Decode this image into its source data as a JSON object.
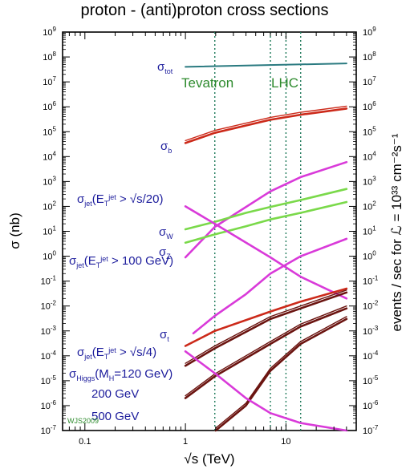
{
  "chart_data": {
    "type": "line",
    "title": "proton - (anti)proton cross sections",
    "xlabel": "√s (TeV)",
    "ylabel": "σ (nb)",
    "ylabel_right": "events / sec for ℒ = 10³³ cm⁻²s⁻¹",
    "x_scale": "log",
    "y_scale": "log",
    "xlim": [
      0.06,
      50
    ],
    "ylim": [
      1e-07,
      1000000000.0
    ],
    "y_right_lim": [
      1e-07,
      1000000000.0
    ],
    "x_ticks": [
      {
        "v": 0.1,
        "label": "0.1"
      },
      {
        "v": 1,
        "label": "1"
      },
      {
        "v": 10,
        "label": "10"
      }
    ],
    "y_ticks": [
      {
        "v": 1e-07,
        "base": "10",
        "exp": "-7"
      },
      {
        "v": 1e-06,
        "base": "10",
        "exp": "-6"
      },
      {
        "v": 1e-05,
        "base": "10",
        "exp": "-5"
      },
      {
        "v": 0.0001,
        "base": "10",
        "exp": "-4"
      },
      {
        "v": 0.001,
        "base": "10",
        "exp": "-3"
      },
      {
        "v": 0.01,
        "base": "10",
        "exp": "-2"
      },
      {
        "v": 0.1,
        "base": "10",
        "exp": "-1"
      },
      {
        "v": 1,
        "base": "10",
        "exp": "0"
      },
      {
        "v": 10.0,
        "base": "10",
        "exp": "1"
      },
      {
        "v": 100.0,
        "base": "10",
        "exp": "2"
      },
      {
        "v": 1000.0,
        "base": "10",
        "exp": "3"
      },
      {
        "v": 10000.0,
        "base": "10",
        "exp": "4"
      },
      {
        "v": 100000.0,
        "base": "10",
        "exp": "5"
      },
      {
        "v": 1000000.0,
        "base": "10",
        "exp": "6"
      },
      {
        "v": 10000000.0,
        "base": "10",
        "exp": "7"
      },
      {
        "v": 100000000.0,
        "base": "10",
        "exp": "8"
      },
      {
        "v": 1000000000.0,
        "base": "10",
        "exp": "9"
      }
    ],
    "grid": false,
    "energy_markers": [
      {
        "label": "Tevatron",
        "x": [
          1.96
        ]
      },
      {
        "label": "LHC",
        "x": [
          7,
          10,
          14
        ]
      }
    ],
    "credit": "WJS2009",
    "colors": {
      "tot": "#2a7a80",
      "b": "#cc2a1a",
      "jet": "#d93ad9",
      "w": "#7ad94a",
      "z": "#7ad94a",
      "t": "#cc2a1a",
      "higgs": "#6b1410",
      "marker": "#1f7a5a",
      "label": "#1c1c9c",
      "region": "#2e8b2e"
    },
    "series": [
      {
        "id": "tot",
        "x": [
          1.0,
          40
        ],
        "y": [
          40000000.0,
          55000000.0
        ],
        "dual": false
      },
      {
        "id": "b",
        "x": [
          1.0,
          1.96,
          7,
          14,
          40
        ],
        "y": [
          35000.0,
          90000.0,
          300000.0,
          480000.0,
          850000.0
        ],
        "dual": true
      },
      {
        "id": "jet_s20",
        "x": [
          1.0,
          1.96,
          7,
          14,
          40
        ],
        "y": [
          0.9,
          15,
          400,
          1500,
          6000
        ],
        "dual": false
      },
      {
        "id": "w",
        "x": [
          1.0,
          1.96,
          4,
          7,
          14,
          40
        ],
        "y": [
          12,
          24,
          55,
          95,
          180,
          500
        ],
        "dual": false
      },
      {
        "id": "z",
        "x": [
          1.0,
          1.96,
          4,
          7,
          14,
          40
        ],
        "y": [
          3.5,
          7.5,
          16,
          30,
          55,
          150
        ],
        "dual": false
      },
      {
        "id": "jet_100",
        "x": [
          1.0,
          1.96,
          7,
          14,
          40
        ],
        "y": [
          100,
          20,
          0.9,
          0.15,
          0.02
        ],
        "dual": false
      },
      {
        "id": "jet_s4",
        "x": [
          1.2,
          1.96,
          4,
          7,
          14,
          40
        ],
        "y": [
          0.0008,
          0.004,
          0.03,
          0.2,
          1.0,
          5.0
        ],
        "dual": false
      },
      {
        "id": "t",
        "x": [
          1.0,
          1.96,
          7,
          14,
          40
        ],
        "y": [
          0.00025,
          0.001,
          0.006,
          0.015,
          0.05
        ],
        "dual": false
      },
      {
        "id": "higgs",
        "x": [
          1.0,
          1.96,
          7,
          14,
          40
        ],
        "y": [
          4e-05,
          0.0002,
          0.003,
          0.008,
          0.035
        ],
        "dual": true
      },
      {
        "id": "higgs200",
        "x": [
          1.0,
          1.96,
          7,
          14,
          40
        ],
        "y": [
          2e-06,
          1.5e-05,
          0.0003,
          0.0015,
          0.008
        ],
        "dual": true
      },
      {
        "id": "higgs500",
        "x": [
          2.0,
          4,
          7,
          14,
          40
        ],
        "y": [
          1e-07,
          1e-06,
          2.5e-05,
          0.0003,
          0.003
        ],
        "dual": true
      },
      {
        "id": "jet_low",
        "x": [
          1.0,
          1.96,
          4,
          7,
          14,
          40
        ],
        "y": [
          0.00015,
          2e-05,
          2e-06,
          5e-07,
          2e-07,
          1e-07
        ],
        "dual": false
      }
    ],
    "labels": [
      {
        "id": "tot",
        "sym": "σ",
        "sub": "tot",
        "sup": "",
        "rest": ""
      },
      {
        "id": "b",
        "sym": "σ",
        "sub": "b",
        "sup": "",
        "rest": ""
      },
      {
        "id": "jet_s20",
        "sym": "σ",
        "sub": "jet",
        "sup": "",
        "rest": "(E",
        "rest_sub": "T",
        "rest_sup": "jet",
        "tail": " > √s/20)"
      },
      {
        "id": "w",
        "sym": "σ",
        "sub": "W",
        "sup": "",
        "rest": ""
      },
      {
        "id": "z",
        "sym": "σ",
        "sub": "Z",
        "sup": "",
        "rest": ""
      },
      {
        "id": "jet_100",
        "sym": "σ",
        "sub": "jet",
        "sup": "",
        "rest": "(E",
        "rest_sub": "T",
        "rest_sup": "jet",
        "tail": " > 100 GeV)"
      },
      {
        "id": "t",
        "sym": "σ",
        "sub": "t",
        "sup": "",
        "rest": ""
      },
      {
        "id": "jet_s4",
        "sym": "σ",
        "sub": "jet",
        "sup": "",
        "rest": "(E",
        "rest_sub": "T",
        "rest_sup": "jet",
        "tail": " > √s/4)"
      },
      {
        "id": "higgs",
        "sym": "σ",
        "sub": "Higgs",
        "sup": "",
        "rest": "(M",
        "rest_sub": "H",
        "rest_sup": "",
        "tail": "=120 GeV)"
      },
      {
        "id": "higgs200",
        "text": "200 GeV"
      },
      {
        "id": "higgs500",
        "text": "500 GeV"
      }
    ]
  }
}
